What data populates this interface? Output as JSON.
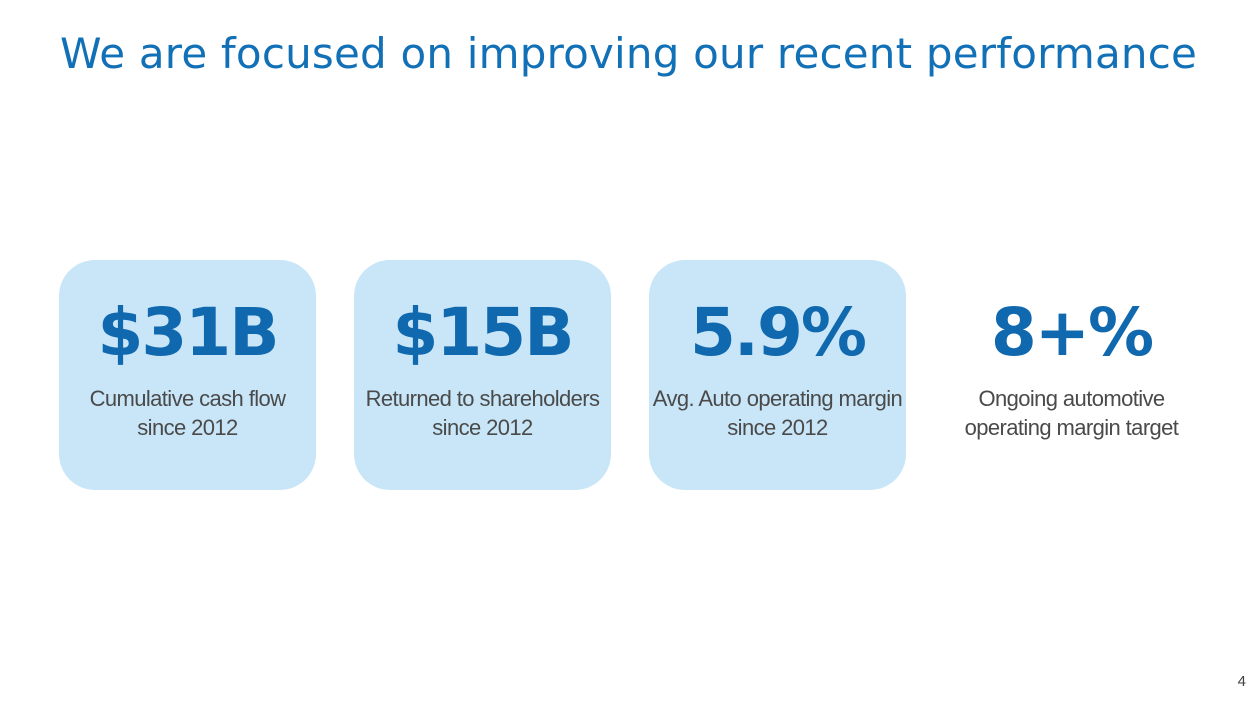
{
  "slide": {
    "title": "We are focused on improving our recent performance",
    "page_number": "4"
  },
  "metrics": [
    {
      "value": "$31B",
      "label_line1": "Cumulative cash flow",
      "label_line2": "since 2012",
      "highlighted": true
    },
    {
      "value": "$15B",
      "label_line1": "Returned to shareholders",
      "label_line2": "since 2012",
      "highlighted": true
    },
    {
      "value": "5.9%",
      "label_line1": "Avg. Auto operating margin",
      "label_line2": "since 2012",
      "highlighted": true
    },
    {
      "value": "8+%",
      "label_line1": "Ongoing automotive",
      "label_line2": "operating margin target",
      "highlighted": false
    }
  ],
  "colors": {
    "title": "#1170b6",
    "value": "#1068ae",
    "card_bg": "#c8e6f8",
    "label": "#4a4a4a"
  }
}
